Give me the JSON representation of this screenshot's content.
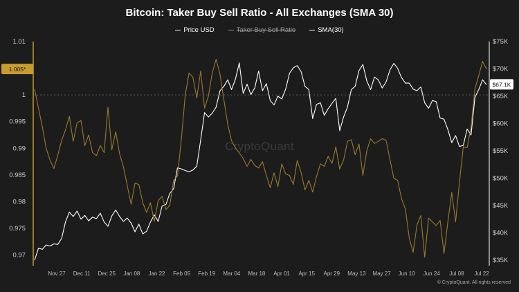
{
  "chart_data": {
    "type": "line",
    "title": "Bitcoin: Taker Buy Sell Ratio - All Exchanges (SMA 30)",
    "legend": [
      {
        "label": "Price USD",
        "visible": true,
        "color": "#ffffff"
      },
      {
        "label": "Taker Buy Sell Ratio",
        "visible": false,
        "color": "#9a9a9a"
      },
      {
        "label": "SMA(30)",
        "visible": true,
        "color": "#9a7b2c"
      }
    ],
    "x_ticks": [
      "Nov 27",
      "Dec 11",
      "Dec 25",
      "Jan 08",
      "Jan 22",
      "Feb 05",
      "Feb 19",
      "Mar 04",
      "Mar 18",
      "Apr 01",
      "Apr 15",
      "Apr 29",
      "May 13",
      "May 27",
      "Jun 10",
      "Jun 24",
      "Jul 08",
      "Jul 22"
    ],
    "y_left": {
      "label": "",
      "min": 0.968,
      "max": 1.01,
      "ticks": [
        "1.01",
        "1.005",
        "1",
        "0.995",
        "0.99",
        "0.985",
        "0.98",
        "0.975",
        "0.97"
      ]
    },
    "y_right": {
      "label": "",
      "min": 34000,
      "max": 75000,
      "ticks": [
        "$75K",
        "$70K",
        "$65K",
        "$60K",
        "$55K",
        "$50K",
        "$45K",
        "$40K",
        "$35K"
      ]
    },
    "reference_line": 1.0,
    "current_sma_label": "1.005*",
    "current_price_label": "$67.1K",
    "series": [
      {
        "name": "Price USD",
        "axis": "right",
        "color": "#ffffff",
        "values": [
          35000,
          37200,
          37000,
          37800,
          37600,
          38000,
          37900,
          39000,
          42000,
          43800,
          43000,
          44000,
          42500,
          43200,
          42200,
          42900,
          42600,
          43600,
          42000,
          41200,
          43100,
          44200,
          43000,
          42100,
          42700,
          41800,
          40200,
          41600,
          39800,
          40300,
          42000,
          43300,
          42100,
          44900,
          45200,
          47200,
          48100,
          51900,
          51700,
          51400,
          51200,
          51500,
          52200,
          57000,
          62000,
          61200,
          61900,
          63000,
          66000,
          66800,
          68000,
          66200,
          68100,
          71100,
          65500,
          67200,
          65300,
          66500,
          69600,
          66000,
          67300,
          64200,
          63400,
          65000,
          64500,
          66300,
          69200,
          70200,
          70600,
          69500,
          66800,
          66200,
          60900,
          63500,
          63800,
          61500,
          62700,
          63700,
          64600,
          58700,
          61200,
          63000,
          66200,
          66800,
          69700,
          70800,
          67800,
          66200,
          68500,
          68000,
          66500,
          67600,
          69800,
          71000,
          70100,
          68400,
          67400,
          67400,
          66300,
          66000,
          66700,
          63800,
          62800,
          64200,
          64000,
          61000,
          60800,
          58900,
          56500,
          57800,
          55800,
          56000,
          59000,
          57900,
          64800,
          66200,
          68000,
          67100
        ]
      },
      {
        "name": "SMA(30)",
        "axis": "left",
        "color": "#9a7b2c",
        "values": [
          1.0011,
          0.9975,
          0.994,
          0.99,
          0.9878,
          0.9862,
          0.9887,
          0.9915,
          0.9934,
          0.996,
          0.9913,
          0.9948,
          0.9952,
          0.9905,
          0.9925,
          0.9892,
          0.9886,
          0.9905,
          0.9892,
          0.9977,
          0.9897,
          0.9931,
          0.989,
          0.9865,
          0.983,
          0.9795,
          0.9835,
          0.9832,
          0.9798,
          0.978,
          0.9798,
          0.9763,
          0.9802,
          0.981,
          0.9785,
          0.9793,
          0.984,
          0.9848,
          0.9917,
          1.0,
          1.0041,
          1.0033,
          0.9994,
          1.0045,
          0.9975,
          0.9998,
          1.0041,
          1.0067,
          1.0039,
          0.9991,
          0.9945,
          0.9914,
          0.9901,
          0.9891,
          0.9881,
          0.9866,
          0.9879,
          0.9868,
          0.9863,
          0.9875,
          0.9849,
          0.9826,
          0.9854,
          0.9828,
          0.9871,
          0.9852,
          0.9849,
          0.9832,
          0.9877,
          0.9855,
          0.9822,
          0.984,
          0.9818,
          0.9847,
          0.9871,
          0.9866,
          0.9885,
          0.9872,
          0.9903,
          0.9861,
          0.9878,
          0.9913,
          0.9916,
          0.9888,
          0.9908,
          0.9849,
          0.9895,
          0.9918,
          0.9909,
          0.9913,
          0.9918,
          0.9915,
          0.9879,
          0.9844,
          0.984,
          0.9806,
          0.9786,
          0.9732,
          0.9705,
          0.9756,
          0.9774,
          0.9696,
          0.9769,
          0.9762,
          0.9755,
          0.9765,
          0.9703,
          0.9762,
          0.9817,
          0.9762,
          0.9836,
          0.9903,
          0.9901,
          0.994,
          1.0011,
          1.0036,
          1.0063,
          1.0048
        ]
      }
    ]
  },
  "footer": {
    "watermark": "CryptoQuant",
    "copyright": "© CryptoQuant. All rights reserved"
  }
}
